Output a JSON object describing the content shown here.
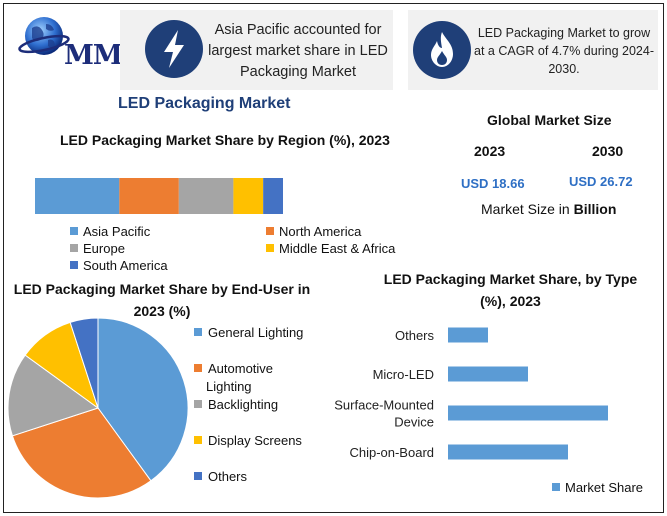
{
  "logo": {
    "text": "MMR",
    "icon": "globe-icon"
  },
  "callouts": [
    {
      "icon": "lightning-icon",
      "text": "Asia Pacific accounted for largest market share in LED Packaging Market"
    },
    {
      "icon": "flame-icon",
      "text": "LED Packaging Market to grow at a CAGR of 4.7% during 2024-2030."
    }
  ],
  "main_title": "LED Packaging Market",
  "global_market_size": {
    "title": "Global Market Size",
    "years": [
      "2023",
      "2030"
    ],
    "values": [
      "USD 18.66",
      "USD 26.72"
    ],
    "note_prefix": "Market Size in ",
    "note_unit": "Billion"
  },
  "colors": {
    "navy": "#1f3f78",
    "blue": "#5b9bd5",
    "orange": "#ed7d31",
    "gray": "#a5a5a5",
    "yellow": "#ffc000",
    "dark_blue": "#4472c4",
    "accent_text": "#2e6fc4"
  },
  "chart_data": [
    {
      "type": "bar",
      "orientation": "horizontal-stacked",
      "title": "LED Packaging Market Share by Region (%), 2023",
      "unit": "%",
      "legend_placement": "bottom",
      "series": [
        {
          "name": "Asia Pacific",
          "value": 34,
          "color": "#5b9bd5"
        },
        {
          "name": "North America",
          "value": 24,
          "color": "#ed7d31"
        },
        {
          "name": "Europe",
          "value": 22,
          "color": "#a5a5a5"
        },
        {
          "name": "Middle East & Africa",
          "value": 12,
          "color": "#ffc000"
        },
        {
          "name": "South America",
          "value": 8,
          "color": "#4472c4"
        }
      ]
    },
    {
      "type": "pie",
      "title": "LED Packaging Market Share by End-User in 2023 (%)",
      "legend_placement": "right",
      "slices": [
        {
          "name": "General Lighting",
          "value": 40,
          "color": "#5b9bd5"
        },
        {
          "name": "Automotive Lighting",
          "value": 30,
          "color": "#ed7d31"
        },
        {
          "name": "Backlighting",
          "value": 15,
          "color": "#a5a5a5"
        },
        {
          "name": "Display Screens",
          "value": 10,
          "color": "#ffc000"
        },
        {
          "name": "Others",
          "value": 5,
          "color": "#4472c4"
        }
      ]
    },
    {
      "type": "bar",
      "orientation": "horizontal",
      "title": "LED Packaging Market Share, by Type (%), 2023",
      "categories": [
        "Others",
        "Micro-LED",
        "Surface-Mounted Device",
        "Chip-on-Board"
      ],
      "series": [
        {
          "name": "Market Share",
          "values": [
            10,
            20,
            40,
            30
          ],
          "color": "#5b9bd5"
        }
      ],
      "xlim": [
        0,
        50
      ],
      "legend_placement": "bottom-right",
      "grid": false
    }
  ]
}
